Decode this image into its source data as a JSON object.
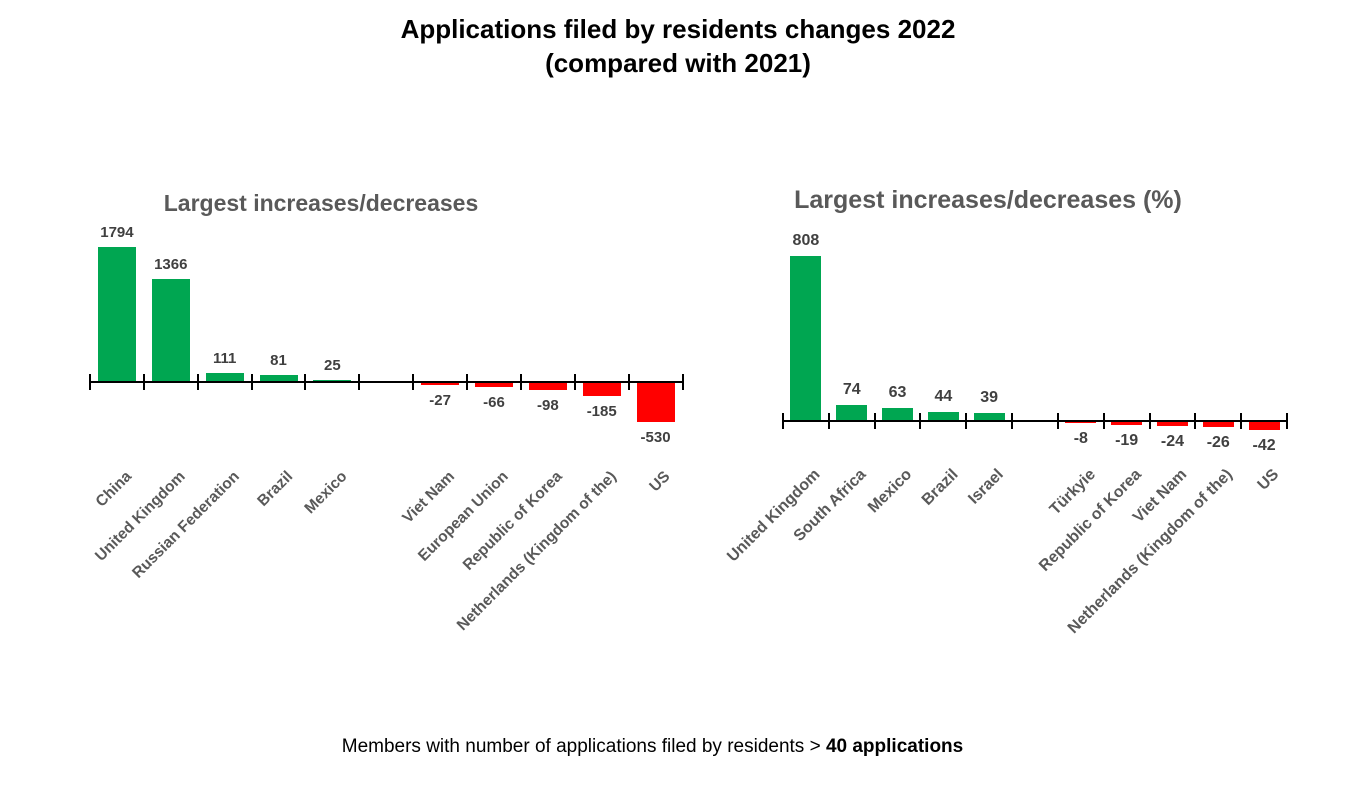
{
  "header": {
    "title_line1": "Applications filed by residents changes 2022",
    "title_line2": "(compared with 2021)"
  },
  "footer": {
    "prefix": "Members with number of applications filed by residents > ",
    "bold": "40 applications"
  },
  "colors": {
    "positive_bar": "#00A651",
    "negative_bar": "#FF0000",
    "axis": "#000000",
    "category_label": "#595959",
    "value_label": "#404040",
    "chart_title": "#595959",
    "main_title": "#000000"
  },
  "chart_data": [
    {
      "type": "bar",
      "title": "Largest increases/decreases",
      "categories": [
        "China",
        "United Kingdom",
        "Russian Federation",
        "Brazil",
        "Mexico",
        "",
        "Viet Nam",
        "European Union",
        "Republic of Korea",
        "Netherlands (Kingdom of the)",
        "US"
      ],
      "values": [
        1794,
        1366,
        111,
        81,
        25,
        null,
        -27,
        -66,
        -98,
        -185,
        -530
      ],
      "xlabel": "",
      "ylabel": "",
      "ylim": [
        -600,
        1900
      ],
      "grid": false,
      "legend": "none",
      "value_labels": "outside-end",
      "category_label_rotation": 45
    },
    {
      "type": "bar",
      "title": "Largest increases/decreases (%)",
      "categories": [
        "United Kingdom",
        "South Africa",
        "Mexico",
        "Brazil",
        "Israel",
        "",
        "Türkyie",
        "Republic of Korea",
        "Viet Nam",
        "Netherlands (Kingdom of the)",
        "US"
      ],
      "values": [
        808,
        74,
        63,
        44,
        39,
        null,
        -8,
        -19,
        -24,
        -26,
        -42
      ],
      "xlabel": "",
      "ylabel": "",
      "ylim": [
        -60,
        850
      ],
      "grid": false,
      "legend": "none",
      "value_labels": "outside-end",
      "category_label_rotation": 45
    }
  ]
}
